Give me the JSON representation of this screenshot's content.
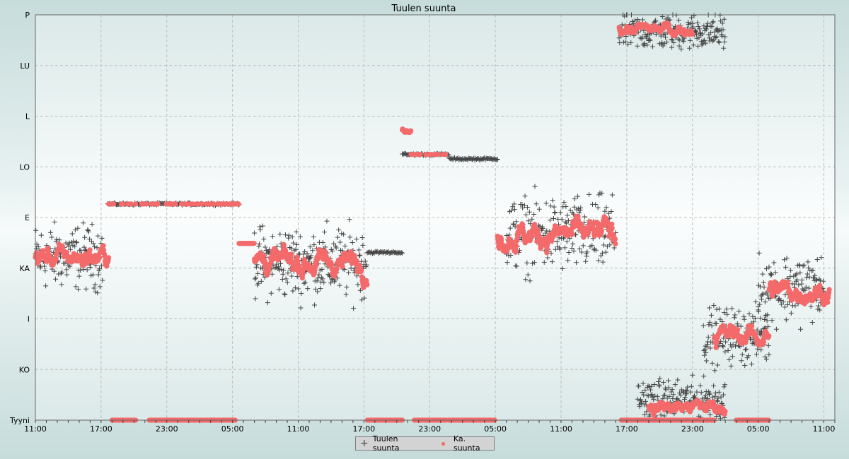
{
  "chart_data": {
    "type": "scatter",
    "title": "Tuulen suunta",
    "xlabel": "",
    "ylabel": "",
    "x_unit": "hours since first 11:00",
    "xlim": [
      0,
      73
    ],
    "x_tick_labels": [
      "11:00",
      "17:00",
      "23:00",
      "05:00",
      "11:00",
      "17:00",
      "23:00",
      "05:00",
      "11:00",
      "17:00",
      "23:00",
      "05:00",
      "11:00"
    ],
    "x_tick_step_hours": 6,
    "y_unit": "degrees (Tyyni = calm)",
    "ylim": [
      0,
      360
    ],
    "y_tick_labels": [
      "Tyyni",
      "KO",
      "I",
      "KA",
      "E",
      "LO",
      "L",
      "LU",
      "P"
    ],
    "y_tick_values": [
      0,
      45,
      90,
      135,
      180,
      225,
      270,
      315,
      360
    ],
    "grid": true,
    "legend": {
      "placement": "bottom-center",
      "entries": [
        "Tuulen suunta",
        "Ka. suunta"
      ]
    },
    "series": [
      {
        "name": "Tuulen suunta",
        "marker": "plus",
        "color": "#444444",
        "segments": [
          {
            "t0": 0,
            "t1": 6.2,
            "mean": 145,
            "spread": 32,
            "mode": "scatter"
          },
          {
            "t0": 6.6,
            "t1": 18.6,
            "mean": 192,
            "spread": 0,
            "mode": "line"
          },
          {
            "t0": 20,
            "t1": 30.3,
            "mean": 140,
            "spread": 36,
            "mode": "scatter"
          },
          {
            "t0": 30.3,
            "t1": 33.5,
            "mean": 149,
            "spread": 0,
            "mode": "line"
          },
          {
            "t0": 33.5,
            "t1": 37.8,
            "mean": 236,
            "spread": 0,
            "mode": "line"
          },
          {
            "t0": 37.8,
            "t1": 42.2,
            "mean": 232,
            "spread": 0,
            "mode": "line"
          },
          {
            "t0": 43,
            "t1": 53,
            "mean": 165,
            "spread": 38,
            "mode": "scatter"
          },
          {
            "t0": 53.3,
            "t1": 63,
            "mean": 345,
            "spread": 18,
            "mode": "scatter"
          },
          {
            "t0": 55,
            "t1": 63,
            "mean": 18,
            "spread": 20,
            "mode": "scatter"
          },
          {
            "t0": 61,
            "t1": 67,
            "mean": 75,
            "spread": 28,
            "mode": "scatter"
          },
          {
            "t0": 66,
            "t1": 72,
            "mean": 118,
            "spread": 34,
            "mode": "scatter"
          }
        ]
      },
      {
        "name": "Ka. suunta",
        "marker": "dot",
        "color": "#f46a6a",
        "segments": [
          {
            "t0": 0,
            "t1": 6.7,
            "mean": 145,
            "spread": 18,
            "mode": "walk"
          },
          {
            "t0": 6.7,
            "t1": 18.6,
            "mean": 192,
            "spread": 0,
            "mode": "sparse"
          },
          {
            "t0": 18.6,
            "t1": 20,
            "mean": 157,
            "spread": 0,
            "mode": "line"
          },
          {
            "t0": 20,
            "t1": 30.3,
            "mean": 140,
            "spread": 20,
            "mode": "walk"
          },
          {
            "t0": 33.5,
            "t1": 34.3,
            "mean": 257,
            "spread": 4,
            "mode": "walk"
          },
          {
            "t0": 34.3,
            "t1": 37.5,
            "mean": 236,
            "spread": 0,
            "mode": "sparse"
          },
          {
            "t0": 42.2,
            "t1": 53,
            "mean": 165,
            "spread": 22,
            "mode": "walk"
          },
          {
            "t0": 53.3,
            "t1": 60,
            "mean": 347,
            "spread": 10,
            "mode": "walk"
          },
          {
            "t0": 56,
            "t1": 63,
            "mean": 12,
            "spread": 12,
            "mode": "walk"
          },
          {
            "t0": 62,
            "t1": 67,
            "mean": 75,
            "spread": 18,
            "mode": "walk"
          },
          {
            "t0": 67,
            "t1": 72.5,
            "mean": 115,
            "spread": 18,
            "mode": "walk"
          }
        ],
        "calm_periods": [
          [
            7,
            9.2
          ],
          [
            10.4,
            18.3
          ],
          [
            30.3,
            33.5
          ],
          [
            34.6,
            37.5
          ],
          [
            37.7,
            42
          ],
          [
            53.5,
            62
          ],
          [
            64,
            67
          ]
        ]
      }
    ]
  }
}
